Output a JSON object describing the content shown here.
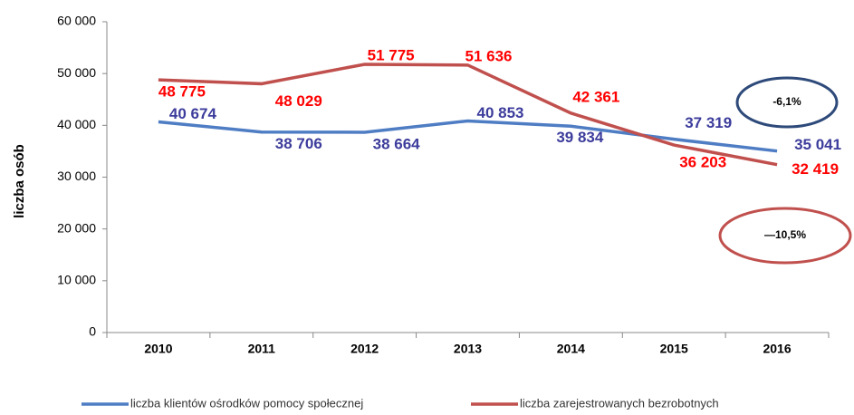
{
  "chart_data": {
    "type": "line",
    "categories": [
      "2010",
      "2011",
      "2012",
      "2013",
      "2014",
      "2015",
      "2016"
    ],
    "series": [
      {
        "name": "liczba klientów ośrodków pomocy społecznej",
        "color": "#4f7dc4",
        "values": [
          40674,
          38706,
          38664,
          40853,
          39834,
          37319,
          35041
        ],
        "value_labels": [
          "40 674",
          "38 706",
          "38 664",
          "40 853",
          "39 834",
          "37 319",
          "35 041"
        ]
      },
      {
        "name": "liczba zarejestrowanych bezrobotnych",
        "color": "#c0504d",
        "values": [
          48775,
          48029,
          51775,
          51636,
          42361,
          36203,
          32419
        ],
        "value_labels": [
          "48 775",
          "48 029",
          "51 775",
          "51 636",
          "42 361",
          "36 203",
          "32 419"
        ]
      }
    ],
    "ylabel": "liczba osób",
    "ylim": [
      0,
      60000
    ],
    "yticks": [
      {
        "value": 0,
        "label": "0"
      },
      {
        "value": 10000,
        "label": "10 000"
      },
      {
        "value": 20000,
        "label": "20 000"
      },
      {
        "value": 30000,
        "label": "30 000"
      },
      {
        "value": 40000,
        "label": "40 000"
      },
      {
        "value": 50000,
        "label": "50 000"
      },
      {
        "value": 60000,
        "label": "60 000"
      }
    ],
    "annotations": [
      "-6,1%",
      "—10,5%"
    ],
    "legend": "bottom"
  }
}
